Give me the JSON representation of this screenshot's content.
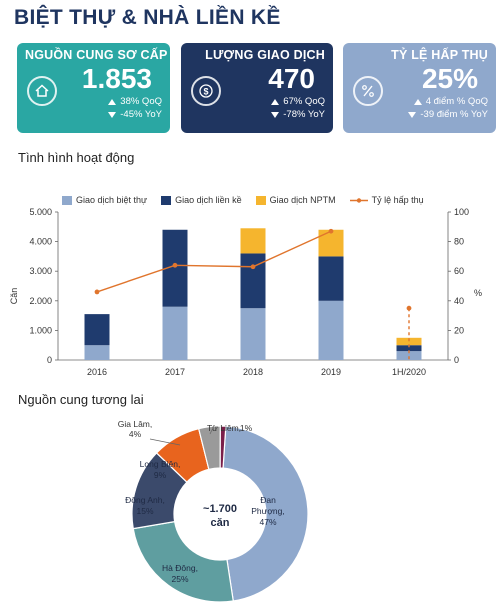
{
  "page_title": "BIỆT THỰ & NHÀ LIỀN KỀ",
  "cards": [
    {
      "label": "NGUỒN CUNG SƠ CẤP",
      "value": "1.853",
      "qoq": "38% QoQ",
      "yoy": "-45% YoY",
      "color": "#2aa7a3",
      "icon": "house-icon"
    },
    {
      "label": "LƯỢNG GIAO DỊCH",
      "value": "470",
      "qoq": "67% QoQ",
      "yoy": "-78% YoY",
      "color": "#1f3560",
      "icon": "dollar-coin-icon"
    },
    {
      "label": "TỶ LỆ HẤP THỤ",
      "value": "25%",
      "qoq": "4 điểm % QoQ",
      "yoy": "-39 điểm % YoY",
      "color": "#8fa8cc",
      "icon": "percent-icon"
    }
  ],
  "section1_title": "Tình hình hoạt động",
  "section2_title": "Nguồn cung tương lai",
  "chart_data": [
    {
      "type": "bar",
      "stacked": true,
      "categories": [
        "2016",
        "2017",
        "2018",
        "2019",
        "1H/2020"
      ],
      "series": [
        {
          "name": "Giao dịch biệt thự",
          "values": [
            500,
            1800,
            1750,
            2000,
            300
          ],
          "color": "#8fa8cc"
        },
        {
          "name": "Giao dịch liền kề",
          "values": [
            1050,
            2600,
            1850,
            1500,
            200
          ],
          "color": "#1f3b6e"
        },
        {
          "name": "Giao dịch NPTM",
          "values": [
            0,
            0,
            850,
            900,
            250
          ],
          "color": "#f5b52e"
        }
      ],
      "line_series": {
        "name": "Tỷ lệ hấp thụ",
        "values": [
          46,
          64,
          63,
          87,
          35
        ],
        "color": "#e0752d",
        "axis": "right",
        "dashed_last_segment": true
      },
      "ylabel": "Căn",
      "ylabel_right": "%",
      "ylim": [
        0,
        5000
      ],
      "ylim_right": [
        0,
        100
      ],
      "yticks": [
        "0",
        "1.000",
        "2.000",
        "3.000",
        "4.000",
        "5.000"
      ],
      "yticks_right": [
        "0",
        "20",
        "40",
        "60",
        "80",
        "100"
      ],
      "legend_position": "top",
      "grid": false
    },
    {
      "type": "pie",
      "donut": true,
      "center_label": "~1.700",
      "center_sublabel": "căn",
      "slices": [
        {
          "label": "Đan Phượng",
          "pct_label": "47%",
          "value": 47,
          "color": "#8fa8cc"
        },
        {
          "label": "Hà Đông",
          "pct_label": "25%",
          "value": 25,
          "color": "#5f9ea0"
        },
        {
          "label": "Đông Anh",
          "pct_label": "15%",
          "value": 15,
          "color": "#3b4a6b"
        },
        {
          "label": "Long Biên",
          "pct_label": "9%",
          "value": 9,
          "color": "#e8641e"
        },
        {
          "label": "Gia Lâm",
          "pct_label": "4%",
          "value": 4,
          "color": "#9a9a9a"
        },
        {
          "label": "Từ Liêm",
          "pct_label": "1%",
          "value": 1,
          "color": "#7a1f4a"
        }
      ]
    }
  ]
}
